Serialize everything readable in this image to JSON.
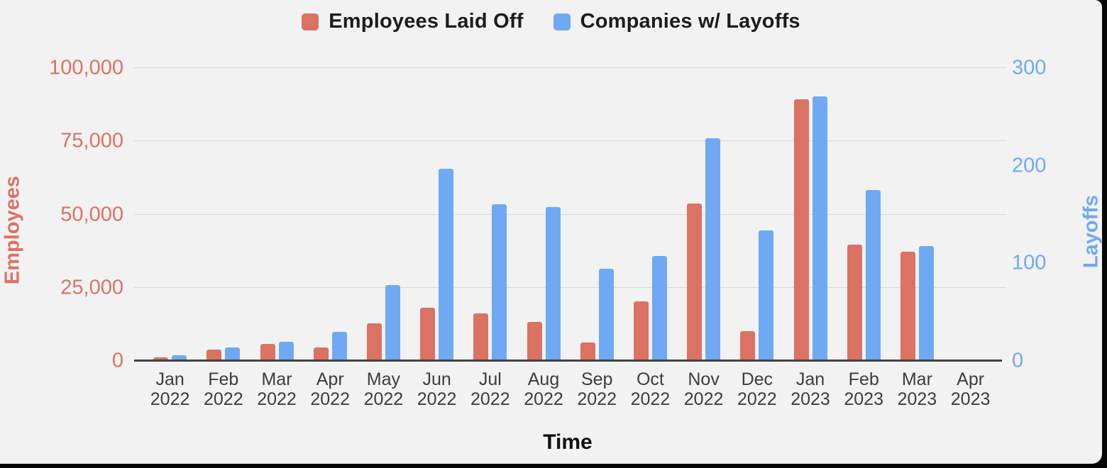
{
  "page": {
    "background": "#060606",
    "canvas_background": "#f2f2f3",
    "gridline_color": "#d9d9d9",
    "baseline_color": "#424242"
  },
  "legend": {
    "items": [
      {
        "label": "Employees Laid Off",
        "color": "#db7263"
      },
      {
        "label": "Companies w/ Layoffs",
        "color": "#6fa9f3"
      }
    ]
  },
  "chart_data": {
    "type": "bar",
    "grouped": true,
    "dual_axis": true,
    "legend_position": "top",
    "grid": true,
    "categories": [
      {
        "month": "Jan",
        "year": "2022"
      },
      {
        "month": "Feb",
        "year": "2022"
      },
      {
        "month": "Mar",
        "year": "2022"
      },
      {
        "month": "Apr",
        "year": "2022"
      },
      {
        "month": "May",
        "year": "2022"
      },
      {
        "month": "Jun",
        "year": "2022"
      },
      {
        "month": "Jul",
        "year": "2022"
      },
      {
        "month": "Aug",
        "year": "2022"
      },
      {
        "month": "Sep",
        "year": "2022"
      },
      {
        "month": "Oct",
        "year": "2022"
      },
      {
        "month": "Nov",
        "year": "2022"
      },
      {
        "month": "Dec",
        "year": "2022"
      },
      {
        "month": "Jan",
        "year": "2023"
      },
      {
        "month": "Feb",
        "year": "2023"
      },
      {
        "month": "Mar",
        "year": "2023"
      },
      {
        "month": "Apr",
        "year": "2023"
      }
    ],
    "series": [
      {
        "name": "Employees Laid Off",
        "axis": "left",
        "color": "#db7263",
        "values": [
          900,
          3600,
          5600,
          4400,
          12700,
          18000,
          16000,
          13000,
          6000,
          20000,
          53400,
          10000,
          89200,
          39400,
          37100,
          0
        ]
      },
      {
        "name": "Companies w/ Layoffs",
        "axis": "right",
        "color": "#6fa9f3",
        "values": [
          5,
          13,
          19,
          29,
          77,
          196,
          160,
          157,
          94,
          107,
          227,
          133,
          270,
          174,
          117,
          0
        ]
      }
    ],
    "left_axis": {
      "title": "Employees",
      "color": "#db7263",
      "min": 0,
      "max": 100000,
      "ticks": [
        {
          "label": "0",
          "value": 0
        },
        {
          "label": "25,000",
          "value": 25000
        },
        {
          "label": "50,000",
          "value": 50000
        },
        {
          "label": "75,000",
          "value": 75000
        },
        {
          "label": "100,000",
          "value": 100000
        }
      ]
    },
    "right_axis": {
      "title": "Layoffs",
      "color": "#6fa9f3",
      "min": 0,
      "max": 300,
      "ticks": [
        {
          "label": "0",
          "value": 0
        },
        {
          "label": "100",
          "value": 100
        },
        {
          "label": "200",
          "value": 200
        },
        {
          "label": "300",
          "value": 300
        }
      ]
    },
    "x_axis": {
      "title": "Time"
    }
  }
}
